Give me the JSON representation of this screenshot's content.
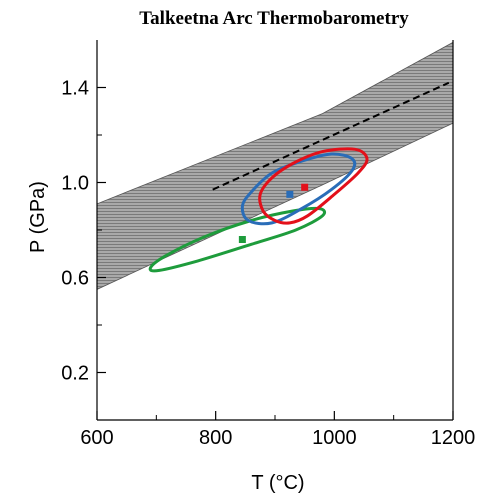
{
  "chart_data": {
    "type": "scatter",
    "title": "Talkeetna Arc Thermobarometry",
    "xlabel": "T (°C)",
    "ylabel": "P (GPa)",
    "xlim": [
      600,
      1200
    ],
    "ylim": [
      0.0,
      1.6
    ],
    "x_ticks_major": [
      600,
      800,
      1000,
      1200
    ],
    "x_ticks_minor": [
      700,
      900,
      1100
    ],
    "y_ticks_major": [
      0.2,
      0.6,
      1.0,
      1.4
    ],
    "y_ticks_minor": [
      0.4,
      0.8,
      1.2
    ],
    "grid": false,
    "band": {
      "color": "#8c8c8c",
      "upper": [
        [
          600,
          0.91
        ],
        [
          980,
          1.29
        ],
        [
          1200,
          1.59
        ]
      ],
      "lower": [
        [
          600,
          0.55
        ],
        [
          980,
          0.99
        ],
        [
          1200,
          1.25
        ]
      ]
    },
    "dashed_line": {
      "color": "#000000",
      "points": [
        [
          795,
          0.97
        ],
        [
          1193,
          1.42
        ]
      ]
    },
    "series": [
      {
        "color": "#e3101a",
        "point": [
          950,
          0.98
        ],
        "envelope": [
          [
            875,
            0.95
          ],
          [
            895,
            1.02
          ],
          [
            930,
            1.08
          ],
          [
            980,
            1.13
          ],
          [
            1035,
            1.14
          ],
          [
            1055,
            1.1
          ],
          [
            1040,
            1.04
          ],
          [
            1000,
            0.95
          ],
          [
            955,
            0.86
          ],
          [
            925,
            0.83
          ],
          [
            900,
            0.84
          ],
          [
            880,
            0.88
          ]
        ]
      },
      {
        "color": "#2a6db8",
        "point": [
          925,
          0.95
        ],
        "envelope": [
          [
            845,
            0.9
          ],
          [
            860,
            0.96
          ],
          [
            895,
            1.04
          ],
          [
            945,
            1.09
          ],
          [
            995,
            1.12
          ],
          [
            1030,
            1.1
          ],
          [
            1030,
            1.05
          ],
          [
            995,
            0.97
          ],
          [
            945,
            0.89
          ],
          [
            895,
            0.83
          ],
          [
            855,
            0.84
          ]
        ]
      },
      {
        "color": "#1e9c3c",
        "point": [
          845,
          0.76
        ],
        "envelope": [
          [
            690,
            0.64
          ],
          [
            715,
            0.69
          ],
          [
            780,
            0.77
          ],
          [
            860,
            0.84
          ],
          [
            930,
            0.88
          ],
          [
            975,
            0.89
          ],
          [
            980,
            0.86
          ],
          [
            935,
            0.8
          ],
          [
            860,
            0.74
          ],
          [
            770,
            0.67
          ],
          [
            705,
            0.63
          ]
        ]
      }
    ]
  }
}
